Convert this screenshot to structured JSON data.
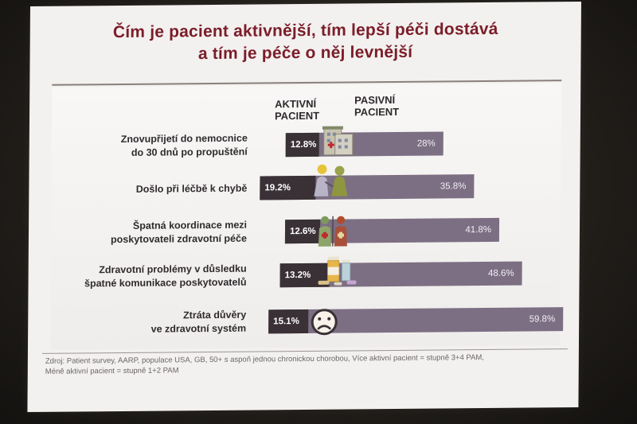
{
  "title": {
    "line1": "Čím je pacient aktivnější, tím lepší péči dostává",
    "line2": "a tím je péče o něj levnější"
  },
  "column_headers": {
    "active": [
      "AKTIVNÍ",
      "PACIENT"
    ],
    "passive": [
      "PASIVNÍ",
      "PACIENT"
    ]
  },
  "chart_data": {
    "type": "bar",
    "orientation": "horizontal",
    "categories": [
      [
        "Znovupřijetí do nemocnice",
        "do 30 dnů po propuštění"
      ],
      [
        "Došlo při léčbě k chybě"
      ],
      [
        "Špatná koordinace mezi",
        "poskytovateli zdravotní péče"
      ],
      [
        "Zdravotní problémy v důsledku",
        "špatné komunikace poskytovatelů"
      ],
      [
        "Ztráta důvěry",
        "ve zdravotní systém"
      ]
    ],
    "series": [
      {
        "name": "AKTIVNÍ PACIENT",
        "values": [
          12.8,
          19.2,
          12.6,
          13.2,
          15.1
        ],
        "labels": [
          "12.8%",
          "19.2%",
          "12.6%",
          "13.2%",
          "15.1%"
        ],
        "color": "#3a3136"
      },
      {
        "name": "PASIVNÍ PACIENT",
        "values": [
          28,
          35.8,
          41.8,
          48.6,
          59.8
        ],
        "labels": [
          "28%",
          "35.8%",
          "41.8%",
          "48.6%",
          "59.8%"
        ],
        "color": "#7c6f83"
      }
    ],
    "unit": "%",
    "icons": [
      "hospital-icon",
      "medical-error-icon",
      "doctors-icon",
      "medicine-bottles-icon",
      "sad-face-icon"
    ]
  },
  "source": {
    "line1": "Zdroj: Patient survey, AARP, populace USA, GB, 50+ s aspoň jednou chronickou chorobou, Více aktivní pacient = stupně 3+4 PAM,",
    "line2": "Méně aktivní pacient = stupně 1+2 PAM"
  }
}
